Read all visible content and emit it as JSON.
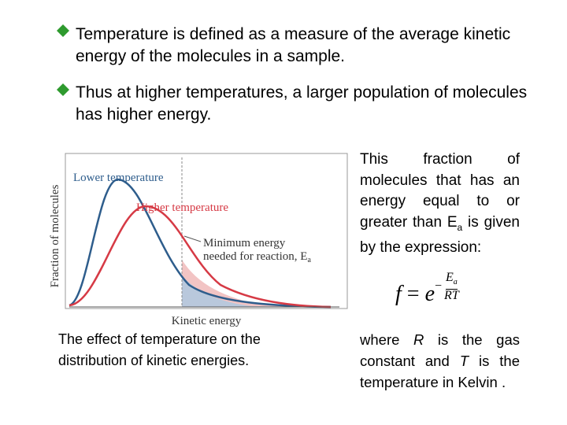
{
  "bullets": [
    "Temperature is defined as a measure of the average kinetic energy of the molecules in a sample.",
    "Thus at higher temperatures, a larger population of molecules has higher energy."
  ],
  "figure": {
    "y_label": "Fraction of molecules",
    "x_label": "Kinetic energy",
    "curve_low": "Lower temperature",
    "curve_high": "Higher temperature",
    "annotation_line1": "Minimum energy",
    "annotation_line2": "needed for reaction, E",
    "annotation_sub": "a"
  },
  "caption": "The effect of temperature on the distribution of kinetic energies.",
  "side_text": {
    "before": "This fraction of molecules that has an energy equal to or greater than E",
    "sub": "a",
    "after": " is given by the expression:"
  },
  "formula": {
    "lhs": "f",
    "eq": "=",
    "base": "e",
    "minus": "−",
    "numerator": "E",
    "numerator_sub": "a",
    "denominator": "RT"
  },
  "note": [
    "where ",
    "R",
    " is the gas constant and ",
    "T",
    " is the temperature in Kelvin ."
  ]
}
